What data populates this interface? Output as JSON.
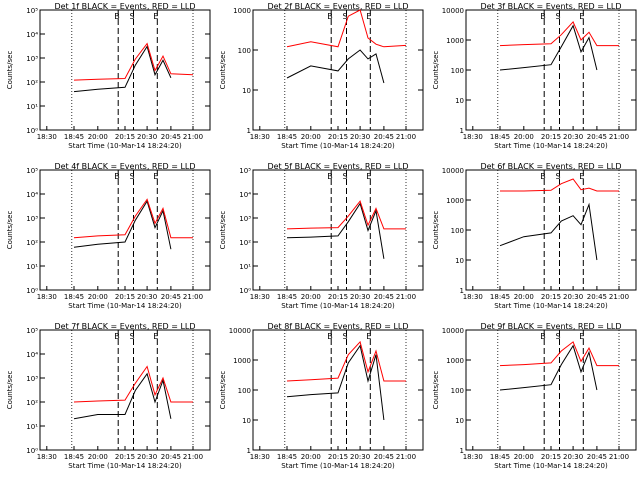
{
  "figure": {
    "rows_subtitle": "Start Time (10-Mar-14 18:24:20)",
    "ylabel": "Counts/sec",
    "xtick_labels": [
      "18:30",
      "18:45",
      "20:00",
      "20:15",
      "20:30",
      "20:45",
      "21:00"
    ],
    "marker_labels": [
      "B",
      "S",
      "E"
    ],
    "colors": {
      "events": "#000000",
      "lld": "#ff0000"
    }
  },
  "chart_data": [
    {
      "type": "line",
      "title": "Det 1f BLACK = Events, RED = LLD",
      "xlabel": "Start Time (10-Mar-14 18:24:20)",
      "ylabel": "Counts/sec",
      "yscale": "log",
      "ylim": [
        1,
        100000
      ],
      "ytick_labels": [
        "10⁰",
        "10¹",
        "10²",
        "10³",
        "10⁴",
        "10⁵"
      ],
      "x": [
        "18:30",
        "18:45",
        "20:00",
        "20:15",
        "20:22",
        "20:30",
        "20:35",
        "20:40",
        "20:45",
        "21:00"
      ],
      "series": [
        {
          "name": "BLACK = Events",
          "values": [
            null,
            40,
            50,
            60,
            500,
            3000,
            200,
            800,
            150,
            null
          ]
        },
        {
          "name": "RED = LLD",
          "values": [
            null,
            120,
            130,
            140,
            900,
            4000,
            300,
            1200,
            220,
            200
          ]
        }
      ]
    },
    {
      "type": "line",
      "title": "Det 2f BLACK = Events, RED = LLD",
      "xlabel": "Start Time (10-Mar-14 18:24:20)",
      "ylabel": "Counts/sec",
      "yscale": "log",
      "ylim": [
        1,
        1000
      ],
      "ytick_labels": [
        "1",
        "10",
        "100",
        "1000"
      ],
      "x": [
        "18:30",
        "18:45",
        "20:00",
        "20:15",
        "20:22",
        "20:30",
        "20:35",
        "20:40",
        "20:45",
        "21:00"
      ],
      "series": [
        {
          "name": "BLACK = Events",
          "values": [
            null,
            20,
            40,
            30,
            60,
            100,
            60,
            80,
            15,
            null
          ]
        },
        {
          "name": "RED = LLD",
          "values": [
            null,
            120,
            160,
            120,
            700,
            1000,
            200,
            140,
            120,
            130
          ]
        }
      ]
    },
    {
      "type": "line",
      "title": "Det 3f BLACK = Events, RED = LLD",
      "xlabel": "Start Time (10-Mar-14 18:24:20)",
      "ylabel": "Counts/sec",
      "yscale": "log",
      "ylim": [
        1,
        10000
      ],
      "ytick_labels": [
        "1",
        "10",
        "100",
        "1000",
        "10000"
      ],
      "x": [
        "18:30",
        "18:45",
        "20:00",
        "20:15",
        "20:22",
        "20:30",
        "20:35",
        "20:40",
        "20:45",
        "21:00"
      ],
      "series": [
        {
          "name": "BLACK = Events",
          "values": [
            null,
            100,
            120,
            150,
            600,
            3000,
            400,
            1200,
            100,
            null
          ]
        },
        {
          "name": "RED = LLD",
          "values": [
            null,
            650,
            700,
            750,
            1500,
            4000,
            1000,
            1800,
            650,
            650
          ]
        }
      ]
    },
    {
      "type": "line",
      "title": "Det 4f BLACK = Events, RED = LLD",
      "xlabel": "Start Time (10-Mar-14 18:24:20)",
      "ylabel": "Counts/sec",
      "yscale": "log",
      "ylim": [
        1,
        100000
      ],
      "ytick_labels": [
        "10⁰",
        "10¹",
        "10²",
        "10³",
        "10⁴",
        "10⁵"
      ],
      "x": [
        "18:30",
        "18:45",
        "20:00",
        "20:15",
        "20:22",
        "20:30",
        "20:35",
        "20:40",
        "20:45",
        "21:00"
      ],
      "series": [
        {
          "name": "BLACK = Events",
          "values": [
            null,
            60,
            80,
            100,
            800,
            5000,
            400,
            2000,
            50,
            null
          ]
        },
        {
          "name": "RED = LLD",
          "values": [
            null,
            150,
            180,
            200,
            1200,
            6000,
            600,
            2500,
            150,
            150
          ]
        }
      ]
    },
    {
      "type": "line",
      "title": "Det 5f BLACK = Events, RED = LLD",
      "xlabel": "Start Time (10-Mar-14 18:24:20)",
      "ylabel": "Counts/sec",
      "yscale": "log",
      "ylim": [
        1,
        100000
      ],
      "ytick_labels": [
        "10⁰",
        "10¹",
        "10²",
        "10³",
        "10⁴",
        "10⁵"
      ],
      "x": [
        "18:30",
        "18:45",
        "20:00",
        "20:15",
        "20:22",
        "20:30",
        "20:35",
        "20:40",
        "20:45",
        "21:00"
      ],
      "series": [
        {
          "name": "BLACK = Events",
          "values": [
            null,
            150,
            160,
            180,
            700,
            4000,
            300,
            2000,
            20,
            null
          ]
        },
        {
          "name": "RED = LLD",
          "values": [
            null,
            350,
            380,
            400,
            1200,
            5000,
            500,
            2500,
            350,
            350
          ]
        }
      ]
    },
    {
      "type": "line",
      "title": "Det 6f BLACK = Events, RED = LLD",
      "xlabel": "Start Time (10-Mar-14 18:24:20)",
      "ylabel": "Counts/sec",
      "yscale": "log",
      "ylim": [
        1,
        10000
      ],
      "ytick_labels": [
        "1",
        "10",
        "100",
        "1000",
        "10000"
      ],
      "x": [
        "18:30",
        "18:45",
        "20:00",
        "20:15",
        "20:22",
        "20:30",
        "20:35",
        "20:40",
        "20:45",
        "21:00"
      ],
      "series": [
        {
          "name": "BLACK = Events",
          "values": [
            null,
            30,
            60,
            80,
            200,
            300,
            150,
            700,
            10,
            null
          ]
        },
        {
          "name": "RED = LLD",
          "values": [
            null,
            2000,
            2000,
            2100,
            3500,
            5000,
            2200,
            2500,
            2000,
            2000
          ]
        }
      ]
    },
    {
      "type": "line",
      "title": "Det 7f BLACK = Events, RED = LLD",
      "xlabel": "Start Time (10-Mar-14 18:24:20)",
      "ylabel": "Counts/sec",
      "yscale": "log",
      "ylim": [
        1,
        100000
      ],
      "ytick_labels": [
        "10⁰",
        "10¹",
        "10²",
        "10³",
        "10⁴",
        "10⁵"
      ],
      "x": [
        "18:30",
        "18:45",
        "20:00",
        "20:15",
        "20:22",
        "20:30",
        "20:35",
        "20:40",
        "20:45",
        "21:00"
      ],
      "series": [
        {
          "name": "BLACK = Events",
          "values": [
            null,
            20,
            30,
            30,
            300,
            1500,
            100,
            800,
            20,
            null
          ]
        },
        {
          "name": "RED = LLD",
          "values": [
            null,
            100,
            110,
            120,
            600,
            3000,
            200,
            1000,
            100,
            100
          ]
        }
      ]
    },
    {
      "type": "line",
      "title": "Det 8f BLACK = Events, RED = LLD",
      "xlabel": "Start Time (10-Mar-14 18:24:20)",
      "ylabel": "Counts/sec",
      "yscale": "log",
      "ylim": [
        1,
        10000
      ],
      "ytick_labels": [
        "1",
        "10",
        "100",
        "1000",
        "10000"
      ],
      "x": [
        "18:30",
        "18:45",
        "20:00",
        "20:15",
        "20:22",
        "20:30",
        "20:35",
        "20:40",
        "20:45",
        "21:00"
      ],
      "series": [
        {
          "name": "BLACK = Events",
          "values": [
            null,
            60,
            70,
            80,
            800,
            3000,
            200,
            1500,
            10,
            null
          ]
        },
        {
          "name": "RED = LLD",
          "values": [
            null,
            200,
            220,
            250,
            1500,
            4000,
            400,
            2000,
            200,
            200
          ]
        }
      ]
    },
    {
      "type": "line",
      "title": "Det 9f BLACK = Events, RED = LLD",
      "xlabel": "Start Time (10-Mar-14 18:24:20)",
      "ylabel": "Counts/sec",
      "yscale": "log",
      "ylim": [
        1,
        10000
      ],
      "ytick_labels": [
        "1",
        "10",
        "100",
        "1000",
        "10000"
      ],
      "x": [
        "18:30",
        "18:45",
        "20:00",
        "20:15",
        "20:22",
        "20:30",
        "20:35",
        "20:40",
        "20:45",
        "21:00"
      ],
      "series": [
        {
          "name": "BLACK = Events",
          "values": [
            null,
            100,
            120,
            150,
            700,
            3000,
            400,
            1800,
            100,
            null
          ]
        },
        {
          "name": "RED = LLD",
          "values": [
            null,
            650,
            700,
            800,
            2000,
            4000,
            900,
            2500,
            650,
            650
          ]
        }
      ]
    }
  ]
}
